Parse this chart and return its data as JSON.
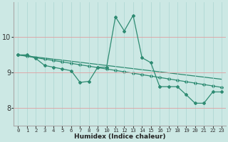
{
  "xlabel": "Humidex (Indice chaleur)",
  "x_values": [
    0,
    1,
    2,
    3,
    4,
    5,
    6,
    7,
    8,
    9,
    10,
    11,
    12,
    13,
    14,
    15,
    16,
    17,
    18,
    19,
    20,
    21,
    22,
    23
  ],
  "line_main_y": [
    9.5,
    9.5,
    9.4,
    9.2,
    9.15,
    9.1,
    9.05,
    8.72,
    8.75,
    9.15,
    9.15,
    10.58,
    10.18,
    10.62,
    9.42,
    9.28,
    8.6,
    8.6,
    8.6,
    8.37,
    8.13,
    8.13,
    8.45,
    8.45
  ],
  "line_trend1_y": [
    9.5,
    9.46,
    9.42,
    9.38,
    9.34,
    9.3,
    9.26,
    9.22,
    9.18,
    9.14,
    9.1,
    9.06,
    9.02,
    8.98,
    8.94,
    8.9,
    8.86,
    8.82,
    8.78,
    8.74,
    8.7,
    8.66,
    8.62,
    8.58
  ],
  "line_trend2_y": [
    9.5,
    9.47,
    9.44,
    9.41,
    9.38,
    9.35,
    9.32,
    9.29,
    9.26,
    9.23,
    9.2,
    9.17,
    9.14,
    9.11,
    9.08,
    9.05,
    9.02,
    8.99,
    8.96,
    8.93,
    8.9,
    8.87,
    8.84,
    8.81
  ],
  "line_color": "#2e8b72",
  "bg_color": "#cce8e4",
  "grid_color": "#b0d8d4",
  "ylim": [
    7.5,
    11.0
  ],
  "yticks": [
    8,
    9,
    10
  ],
  "xlim": [
    -0.5,
    23.5
  ],
  "marker": "D",
  "markersize": 2.0,
  "linewidth": 0.9
}
